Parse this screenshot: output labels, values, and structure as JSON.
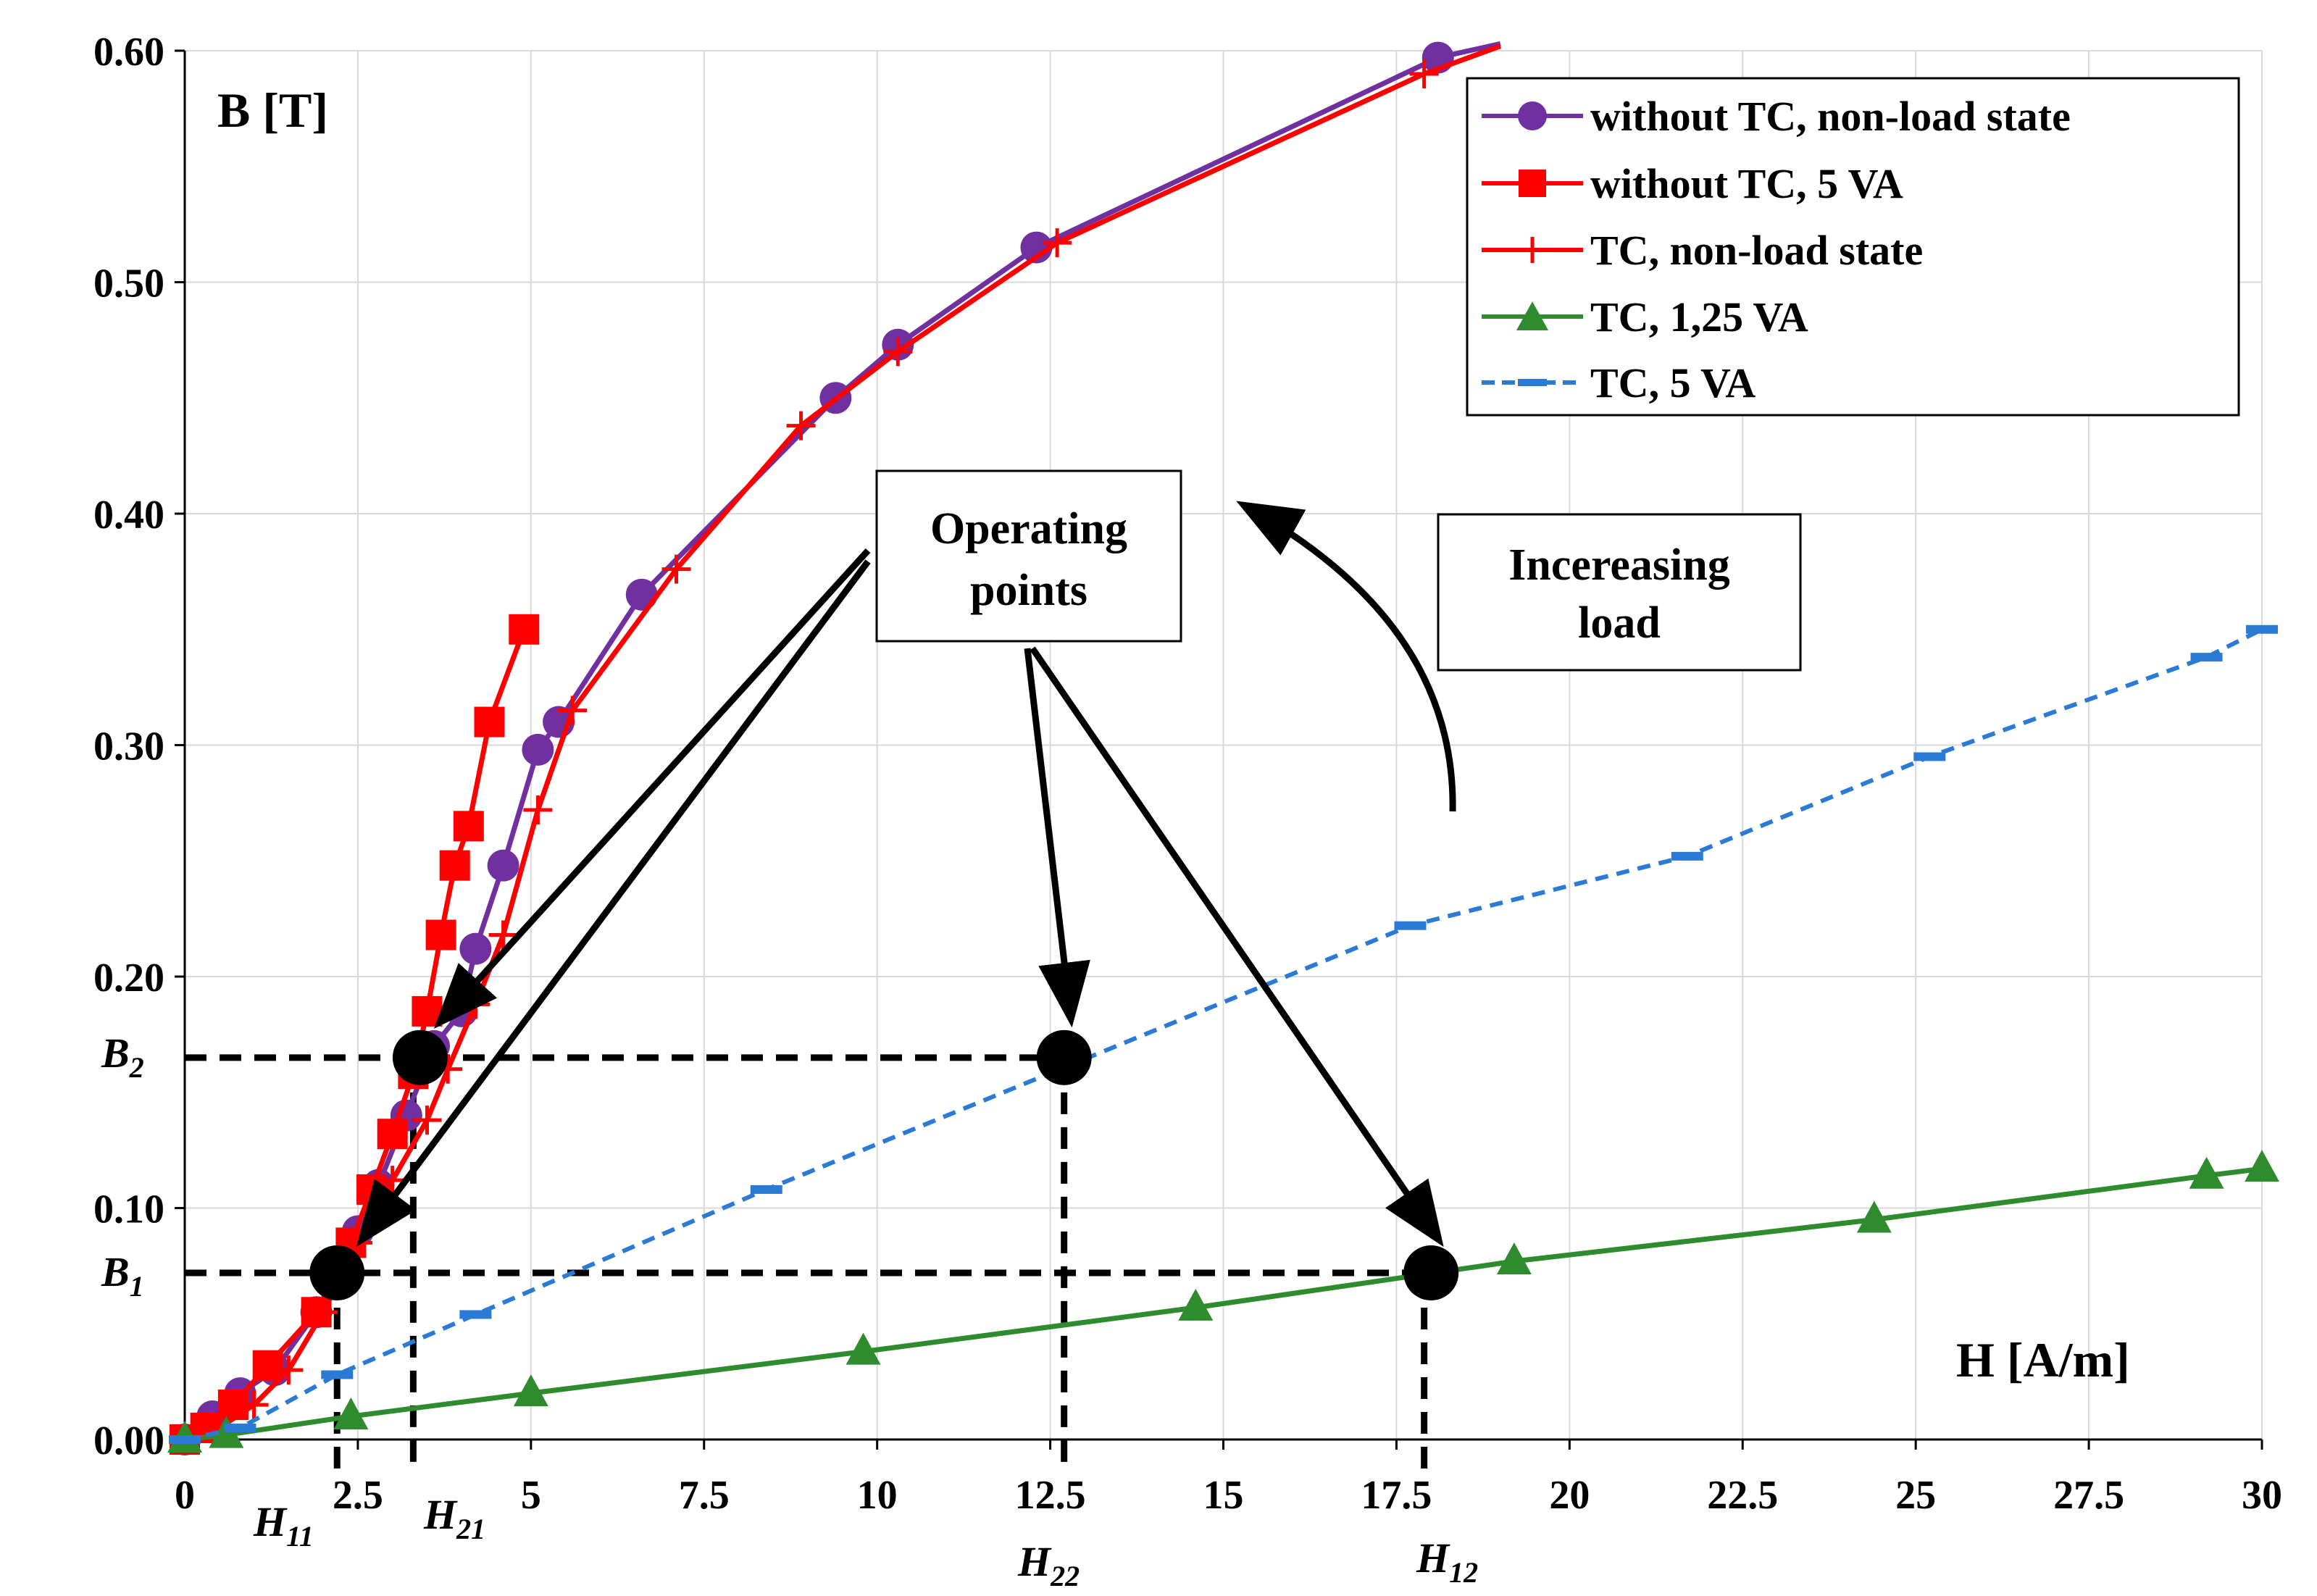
{
  "chart_data": {
    "type": "line",
    "title": "",
    "xlabel": "H [A/m]",
    "ylabel": "B [T]",
    "xlim": [
      0,
      30
    ],
    "ylim": [
      0,
      0.6
    ],
    "grid": true,
    "x_ticks": [
      "0",
      "2.5",
      "5",
      "7.5",
      "10",
      "12.5",
      "15",
      "17.5",
      "20",
      "22.5",
      "25",
      "27.5",
      "30"
    ],
    "y_ticks": [
      "0.00",
      "0.10",
      "0.20",
      "0.30",
      "0.40",
      "0.50",
      "0.60"
    ],
    "legend_position": "top-right",
    "series": [
      {
        "name": "without TC, non-load state",
        "color": "#7030a0",
        "marker": "circle",
        "dash": "solid",
        "points": [
          [
            0,
            0
          ],
          [
            0.4,
            0.01
          ],
          [
            0.8,
            0.02
          ],
          [
            1.3,
            0.03
          ],
          [
            1.9,
            0.055
          ],
          [
            2.5,
            0.09
          ],
          [
            2.8,
            0.11
          ],
          [
            3.2,
            0.14
          ],
          [
            3.6,
            0.17
          ],
          [
            4.0,
            0.185
          ],
          [
            4.2,
            0.212
          ],
          [
            4.6,
            0.248
          ],
          [
            5.1,
            0.298
          ],
          [
            5.4,
            0.31
          ],
          [
            6.6,
            0.365
          ],
          [
            9.4,
            0.45
          ],
          [
            10.3,
            0.473
          ],
          [
            12.3,
            0.515
          ],
          [
            18.1,
            0.597
          ],
          [
            19.0,
            0.605
          ]
        ]
      },
      {
        "name": "without TC, 5 VA",
        "color": "#ff0000",
        "marker": "square",
        "dash": "solid",
        "points": [
          [
            0,
            0
          ],
          [
            0.3,
            0.005
          ],
          [
            0.7,
            0.015
          ],
          [
            1.2,
            0.032
          ],
          [
            1.9,
            0.055
          ],
          [
            2.4,
            0.085
          ],
          [
            2.7,
            0.108
          ],
          [
            3.0,
            0.132
          ],
          [
            3.3,
            0.158
          ],
          [
            3.5,
            0.185
          ],
          [
            3.7,
            0.218
          ],
          [
            3.9,
            0.248
          ],
          [
            4.1,
            0.265
          ],
          [
            4.4,
            0.31
          ],
          [
            4.9,
            0.35
          ]
        ]
      },
      {
        "name": "TC, non-load state",
        "color": "#ff0000",
        "marker": "plus",
        "dash": "solid",
        "points": [
          [
            0,
            0
          ],
          [
            0.5,
            0.005
          ],
          [
            1.0,
            0.015
          ],
          [
            1.5,
            0.03
          ],
          [
            2.0,
            0.055
          ],
          [
            2.5,
            0.085
          ],
          [
            3.0,
            0.112
          ],
          [
            3.5,
            0.138
          ],
          [
            3.8,
            0.16
          ],
          [
            4.2,
            0.188
          ],
          [
            4.6,
            0.218
          ],
          [
            5.1,
            0.272
          ],
          [
            5.6,
            0.315
          ],
          [
            7.1,
            0.376
          ],
          [
            8.9,
            0.438
          ],
          [
            10.3,
            0.47
          ],
          [
            12.6,
            0.517
          ],
          [
            17.9,
            0.59
          ],
          [
            19.0,
            0.602
          ]
        ]
      },
      {
        "name": "TC, 1,25 VA",
        "color": "#2e8b2e",
        "marker": "triangle",
        "dash": "solid",
        "points": [
          [
            0,
            0
          ],
          [
            0.6,
            0.002
          ],
          [
            2.4,
            0.01
          ],
          [
            5.0,
            0.02
          ],
          [
            9.8,
            0.038
          ],
          [
            14.6,
            0.057
          ],
          [
            19.2,
            0.077
          ],
          [
            24.4,
            0.095
          ],
          [
            29.2,
            0.114
          ],
          [
            30,
            0.117
          ]
        ]
      },
      {
        "name": "TC, 5 VA",
        "color": "#2b7bd6",
        "marker": "dash",
        "dash": "dashed",
        "points": [
          [
            0,
            0
          ],
          [
            0.8,
            0.005
          ],
          [
            2.2,
            0.028
          ],
          [
            4.2,
            0.054
          ],
          [
            8.4,
            0.108
          ],
          [
            17.7,
            0.222
          ],
          [
            21.7,
            0.252
          ],
          [
            25.2,
            0.295
          ],
          [
            29.2,
            0.338
          ],
          [
            30,
            0.35
          ]
        ]
      }
    ],
    "operating_points": [
      {
        "h": 2.2,
        "b": 0.072
      },
      {
        "h": 3.4,
        "b": 0.165
      },
      {
        "h": 12.7,
        "b": 0.165
      },
      {
        "h": 18.0,
        "b": 0.072
      }
    ],
    "guide_lines": {
      "b_levels": [
        0.072,
        0.165
      ],
      "h_levels": [
        2.2,
        3.3,
        12.7,
        17.9
      ]
    },
    "markers": {
      "B1": {
        "main": "B",
        "sub": "1"
      },
      "B2": {
        "main": "B",
        "sub": "2"
      },
      "H11": {
        "main": "H",
        "sub": "11"
      },
      "H21": {
        "main": "H",
        "sub": "21"
      },
      "H22": {
        "main": "H",
        "sub": "22"
      },
      "H12": {
        "main": "H",
        "sub": "12"
      }
    },
    "annotations": {
      "operating_points": [
        "Operating",
        "points"
      ],
      "increasing_load": [
        "Incereasing",
        "load"
      ]
    }
  }
}
